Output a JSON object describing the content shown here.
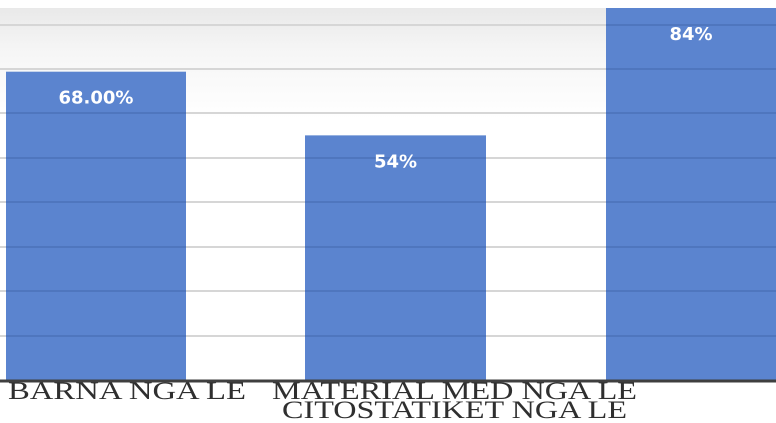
{
  "chart_data": {
    "type": "bar",
    "categories": [
      "BARNA NGA LE",
      "MATERIAL MED NGA LE",
      "CITOSTATIKET NGA LE"
    ],
    "values": [
      68,
      54,
      84
    ],
    "data_labels": [
      "68.00%",
      "54%",
      "84%"
    ],
    "title": "",
    "xlabel": "",
    "ylabel": "",
    "ylim": [
      0,
      82
    ],
    "grid": true,
    "legend": "none",
    "colors": {
      "bar": "#5b84cf",
      "gridline": "#d6d6d6",
      "bar_gridline": "#4f76be",
      "baseline": "#3f3f3f",
      "background": "#ffffff",
      "label_text": "#ffffff",
      "category_text": "#2f2f2f"
    }
  }
}
